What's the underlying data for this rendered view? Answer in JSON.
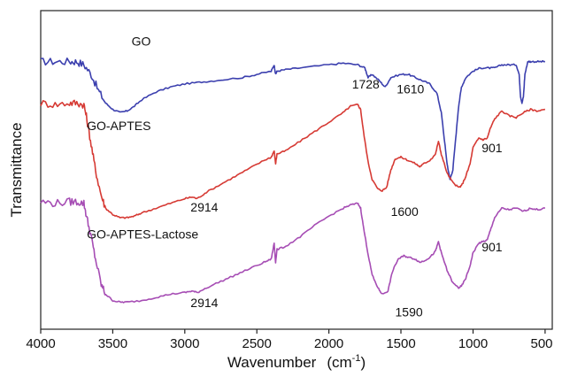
{
  "chart_data": {
    "type": "line",
    "xlabel": "Wavenumber",
    "xlabel_unit_base": "cm",
    "xlabel_unit_exp": "-1",
    "ylabel": "Transmittance",
    "xlim": [
      4000,
      450
    ],
    "x_reversed": true,
    "ylim": [
      0,
      100
    ],
    "y_ticks_shown": false,
    "grid": false,
    "legend": "none",
    "x_ticks": [
      4000,
      3500,
      3000,
      2500,
      2000,
      1500,
      1000,
      500
    ],
    "x_tick_labels": [
      "4000",
      "3500",
      "3000",
      "2500",
      "2000",
      "1500",
      "1000",
      "500"
    ],
    "series": [
      {
        "name": "GO",
        "color": "#3b3fae",
        "label_at": [
          3370,
          89
        ],
        "points": [
          [
            4000,
            84
          ],
          [
            3900,
            84
          ],
          [
            3800,
            84
          ],
          [
            3750,
            84
          ],
          [
            3700,
            83
          ],
          [
            3650,
            80
          ],
          [
            3600,
            75
          ],
          [
            3550,
            71
          ],
          [
            3500,
            69
          ],
          [
            3450,
            68
          ],
          [
            3400,
            68.5
          ],
          [
            3350,
            70
          ],
          [
            3300,
            72
          ],
          [
            3200,
            74.5
          ],
          [
            3100,
            76
          ],
          [
            3000,
            77
          ],
          [
            2900,
            77.5
          ],
          [
            2800,
            78
          ],
          [
            2600,
            79
          ],
          [
            2500,
            80
          ],
          [
            2400,
            81
          ],
          [
            2380,
            83
          ],
          [
            2370,
            80
          ],
          [
            2360,
            81
          ],
          [
            2300,
            81.5
          ],
          [
            2200,
            82
          ],
          [
            2000,
            83
          ],
          [
            1900,
            83.5
          ],
          [
            1800,
            83
          ],
          [
            1750,
            82
          ],
          [
            1728,
            79
          ],
          [
            1700,
            80
          ],
          [
            1650,
            78
          ],
          [
            1610,
            76
          ],
          [
            1570,
            79
          ],
          [
            1500,
            80
          ],
          [
            1450,
            80
          ],
          [
            1400,
            79
          ],
          [
            1350,
            78
          ],
          [
            1300,
            77
          ],
          [
            1250,
            74
          ],
          [
            1220,
            68
          ],
          [
            1200,
            60
          ],
          [
            1180,
            52
          ],
          [
            1160,
            47
          ],
          [
            1140,
            50
          ],
          [
            1120,
            60
          ],
          [
            1100,
            70
          ],
          [
            1080,
            76
          ],
          [
            1050,
            79
          ],
          [
            1000,
            81
          ],
          [
            950,
            82
          ],
          [
            900,
            82
          ],
          [
            850,
            82
          ],
          [
            800,
            83
          ],
          [
            750,
            83
          ],
          [
            700,
            83
          ],
          [
            680,
            80
          ],
          [
            670,
            73
          ],
          [
            660,
            71
          ],
          [
            650,
            73
          ],
          [
            640,
            80
          ],
          [
            620,
            84
          ],
          [
            600,
            84
          ],
          [
            550,
            84
          ],
          [
            500,
            84
          ]
        ]
      },
      {
        "name": "GO-APTES",
        "color": "#d63a34",
        "label_at": [
          3680,
          62.5
        ],
        "points": [
          [
            4000,
            71
          ],
          [
            3900,
            70.5
          ],
          [
            3800,
            71
          ],
          [
            3750,
            71
          ],
          [
            3700,
            70.5
          ],
          [
            3680,
            66
          ],
          [
            3650,
            58
          ],
          [
            3620,
            50
          ],
          [
            3580,
            42
          ],
          [
            3550,
            38
          ],
          [
            3500,
            36
          ],
          [
            3450,
            35
          ],
          [
            3400,
            35
          ],
          [
            3350,
            35.5
          ],
          [
            3300,
            36.5
          ],
          [
            3200,
            38
          ],
          [
            3100,
            39.5
          ],
          [
            3000,
            41
          ],
          [
            2950,
            41.5
          ],
          [
            2914,
            41
          ],
          [
            2850,
            43
          ],
          [
            2750,
            45.5
          ],
          [
            2650,
            48
          ],
          [
            2550,
            50.5
          ],
          [
            2450,
            53
          ],
          [
            2400,
            54
          ],
          [
            2380,
            56
          ],
          [
            2370,
            52
          ],
          [
            2360,
            55
          ],
          [
            2300,
            56
          ],
          [
            2200,
            59
          ],
          [
            2100,
            62
          ],
          [
            2000,
            65
          ],
          [
            1900,
            68
          ],
          [
            1850,
            70
          ],
          [
            1800,
            70.5
          ],
          [
            1780,
            69
          ],
          [
            1760,
            62
          ],
          [
            1730,
            53
          ],
          [
            1700,
            47
          ],
          [
            1660,
            44
          ],
          [
            1630,
            43.5
          ],
          [
            1600,
            44.5
          ],
          [
            1570,
            50
          ],
          [
            1540,
            53.5
          ],
          [
            1500,
            54
          ],
          [
            1450,
            53
          ],
          [
            1400,
            52
          ],
          [
            1370,
            51
          ],
          [
            1340,
            52
          ],
          [
            1300,
            53
          ],
          [
            1260,
            55
          ],
          [
            1240,
            59
          ],
          [
            1220,
            55
          ],
          [
            1180,
            49
          ],
          [
            1140,
            46
          ],
          [
            1100,
            44.5
          ],
          [
            1080,
            45
          ],
          [
            1050,
            48
          ],
          [
            1020,
            52
          ],
          [
            1000,
            57
          ],
          [
            960,
            60
          ],
          [
            930,
            59.5
          ],
          [
            901,
            60
          ],
          [
            880,
            63
          ],
          [
            850,
            66
          ],
          [
            800,
            68.5
          ],
          [
            750,
            67
          ],
          [
            700,
            66.5
          ],
          [
            650,
            68
          ],
          [
            600,
            69
          ],
          [
            550,
            68.5
          ],
          [
            500,
            69
          ]
        ]
      },
      {
        "name": "GO-APTES-Lactose",
        "color": "#a64db4",
        "label_at": [
          3680,
          28.5
        ],
        "points": [
          [
            4000,
            40
          ],
          [
            3900,
            39.5
          ],
          [
            3800,
            40
          ],
          [
            3750,
            40
          ],
          [
            3700,
            39.5
          ],
          [
            3680,
            35
          ],
          [
            3650,
            29
          ],
          [
            3620,
            22
          ],
          [
            3580,
            14
          ],
          [
            3550,
            11
          ],
          [
            3500,
            9
          ],
          [
            3450,
            8.5
          ],
          [
            3400,
            8.5
          ],
          [
            3300,
            9
          ],
          [
            3200,
            10
          ],
          [
            3100,
            11
          ],
          [
            3000,
            11.5
          ],
          [
            2950,
            12
          ],
          [
            2914,
            11.5
          ],
          [
            2850,
            13
          ],
          [
            2750,
            15
          ],
          [
            2650,
            17
          ],
          [
            2550,
            19
          ],
          [
            2450,
            21
          ],
          [
            2400,
            22
          ],
          [
            2380,
            27
          ],
          [
            2370,
            21
          ],
          [
            2360,
            25
          ],
          [
            2300,
            26
          ],
          [
            2200,
            29
          ],
          [
            2100,
            32.5
          ],
          [
            2000,
            35.5
          ],
          [
            1900,
            38
          ],
          [
            1850,
            39
          ],
          [
            1800,
            39.5
          ],
          [
            1780,
            38
          ],
          [
            1760,
            32
          ],
          [
            1730,
            24
          ],
          [
            1700,
            17
          ],
          [
            1660,
            13
          ],
          [
            1630,
            11
          ],
          [
            1590,
            12
          ],
          [
            1560,
            18
          ],
          [
            1520,
            22
          ],
          [
            1480,
            23
          ],
          [
            1440,
            22.5
          ],
          [
            1400,
            22
          ],
          [
            1370,
            21
          ],
          [
            1340,
            21.5
          ],
          [
            1300,
            22.5
          ],
          [
            1260,
            24.5
          ],
          [
            1240,
            27.5
          ],
          [
            1220,
            24
          ],
          [
            1180,
            18.5
          ],
          [
            1140,
            14.5
          ],
          [
            1100,
            13
          ],
          [
            1080,
            13.5
          ],
          [
            1050,
            16
          ],
          [
            1020,
            20
          ],
          [
            1000,
            24
          ],
          [
            960,
            27
          ],
          [
            930,
            27.5
          ],
          [
            901,
            28
          ],
          [
            880,
            31
          ],
          [
            850,
            35
          ],
          [
            800,
            38
          ],
          [
            750,
            37.5
          ],
          [
            700,
            38
          ],
          [
            650,
            37
          ],
          [
            600,
            38
          ],
          [
            550,
            37.5
          ],
          [
            500,
            38
          ]
        ]
      }
    ],
    "annotations": [
      {
        "text": "1728",
        "x": 1840,
        "y": 75.5
      },
      {
        "text": "1610",
        "x": 1530,
        "y": 74
      },
      {
        "text": "2914",
        "x": 2960,
        "y": 37
      },
      {
        "text": "1600",
        "x": 1570,
        "y": 35.5
      },
      {
        "text": "901",
        "x": 940,
        "y": 55.5
      },
      {
        "text": "2914",
        "x": 2960,
        "y": 7
      },
      {
        "text": "1590",
        "x": 1540,
        "y": 4
      },
      {
        "text": "901",
        "x": 940,
        "y": 24.5
      }
    ]
  }
}
